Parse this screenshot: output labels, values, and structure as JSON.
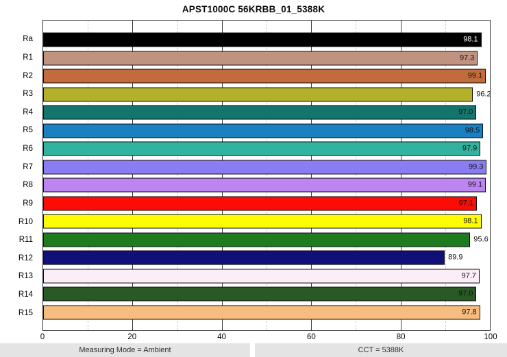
{
  "title": "APST1000C 56KRBB_01_5388K",
  "footer": {
    "left": "Measuring Mode = Ambient",
    "right": "CCT = 5388K"
  },
  "chart_data": {
    "type": "bar",
    "orientation": "horizontal",
    "title": "APST1000C 56KRBB_01_5388K",
    "xlabel": "",
    "ylabel": "",
    "xlim": [
      0,
      100
    ],
    "xticks": [
      0,
      20,
      40,
      60,
      80,
      100
    ],
    "major_gridlines": [
      20,
      40,
      60,
      80
    ],
    "minor_gridlines": [
      10,
      30,
      50,
      70,
      90
    ],
    "grid": "on",
    "categories": [
      "Ra",
      "R1",
      "R2",
      "R3",
      "R4",
      "R5",
      "R6",
      "R7",
      "R8",
      "R9",
      "R10",
      "R11",
      "R12",
      "R13",
      "R14",
      "R15"
    ],
    "values": [
      98.1,
      97.3,
      99.1,
      96.2,
      97.0,
      98.5,
      97.9,
      99.3,
      99.1,
      97.1,
      98.1,
      95.6,
      89.9,
      97.7,
      97.0,
      97.8
    ],
    "value_labels": [
      "98.1",
      "97.3",
      "99.1",
      "96.2",
      "97.0",
      "98.5",
      "97.9",
      "99.3",
      "99.1",
      "97.1",
      "98.1",
      "95.6",
      "89.9",
      "97.7",
      "97.0",
      "97.8"
    ],
    "bar_colors": [
      "#000000",
      "#c09280",
      "#c26b3c",
      "#b4b02c",
      "#14756c",
      "#1a80c1",
      "#34b2a0",
      "#8a7df2",
      "#bc85f0",
      "#fb0d06",
      "#fdfc00",
      "#1e7c1e",
      "#101078",
      "#fceef8",
      "#295a25",
      "#f7bc7f"
    ],
    "value_label_position": [
      "inside",
      "inside",
      "inside",
      "outside",
      "inside",
      "inside",
      "inside",
      "inside",
      "inside",
      "inside",
      "inside",
      "outside",
      "outside",
      "inside",
      "inside",
      "inside"
    ],
    "value_label_colors": [
      "#ffffff",
      "#111111",
      "#111111",
      "#111111",
      "#111111",
      "#111111",
      "#111111",
      "#111111",
      "#111111",
      "#111111",
      "#111111",
      "#111111",
      "#111111",
      "#111111",
      "#111111",
      "#111111"
    ],
    "bar_border_color": "#0d0d0d"
  }
}
